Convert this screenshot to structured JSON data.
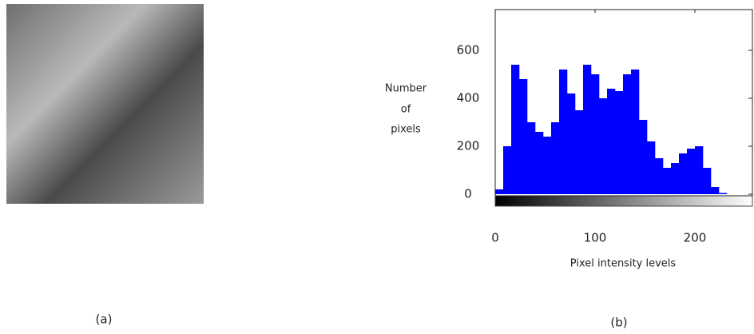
{
  "figure": {
    "captions": [
      "(a)",
      "(b)"
    ]
  },
  "chart_data": {
    "type": "histogram",
    "ylabel": [
      "Number",
      "of",
      "pixels"
    ],
    "xlabel": "Pixel intensity levels",
    "color": "#0000ff",
    "bins": [
      0,
      8,
      16,
      24,
      32,
      40,
      48,
      56,
      64,
      72,
      80,
      88,
      96,
      104,
      112,
      120,
      128,
      136,
      144,
      152,
      160,
      168,
      176,
      184,
      192,
      200,
      208,
      216,
      224,
      232,
      240,
      248,
      256
    ],
    "values": [
      20,
      200,
      540,
      480,
      300,
      260,
      240,
      300,
      520,
      420,
      350,
      540,
      500,
      400,
      440,
      430,
      500,
      520,
      310,
      220,
      150,
      110,
      130,
      170,
      190,
      200,
      110,
      30,
      5,
      0,
      0,
      0
    ],
    "xlim": [
      0,
      256
    ],
    "ylim": [
      0,
      770
    ],
    "xticks": [
      0,
      100,
      200
    ],
    "yticks": [
      0,
      200,
      400,
      600
    ]
  }
}
